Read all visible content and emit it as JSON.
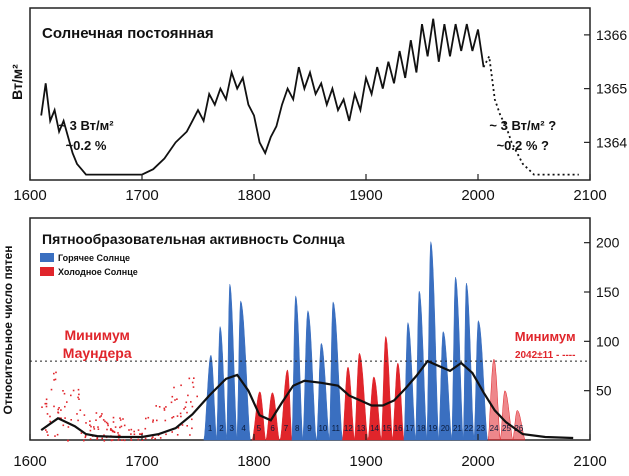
{
  "chart_data": [
    {
      "type": "line",
      "title": "Солнечная постоянная",
      "ylabel": "Вт/м²",
      "x_ticks": [
        "1600",
        "1700",
        "1800",
        "1900",
        "2000",
        "2100"
      ],
      "y_ticks": [
        "1366",
        "1365",
        "1364"
      ],
      "xlim": [
        1600,
        2100
      ],
      "ylim": [
        1363.3,
        1366.5
      ],
      "annotations": [
        {
          "text": "~ 3 Вт/м²",
          "x": 1650
        },
        {
          "text": "~0.2 %",
          "x": 1650
        },
        {
          "text": "~ 3 Вт/м² ?",
          "x": 2040
        },
        {
          "text": "~0.2 % ?",
          "x": 2040
        }
      ],
      "series": [
        {
          "line_style": "solid",
          "x": [
            1610,
            1614,
            1618,
            1622,
            1626,
            1630,
            1634,
            1638,
            1642,
            1646,
            1650,
            1660,
            1670,
            1680,
            1690,
            1700,
            1710,
            1720,
            1730,
            1740,
            1745,
            1750,
            1755,
            1760,
            1765,
            1770,
            1775,
            1780,
            1785,
            1790,
            1795,
            1800,
            1805,
            1810,
            1815,
            1820,
            1825,
            1830,
            1835,
            1840,
            1845,
            1850,
            1855,
            1860,
            1865,
            1870,
            1875,
            1880,
            1885,
            1890,
            1895,
            1900,
            1905,
            1910,
            1915,
            1920,
            1925,
            1930,
            1935,
            1940,
            1945,
            1950,
            1955,
            1960,
            1965,
            1970,
            1975,
            1980,
            1985,
            1990,
            1995,
            2000,
            2005
          ],
          "y": [
            1364.5,
            1365.1,
            1364.4,
            1364.6,
            1364.2,
            1364.4,
            1364.1,
            1363.8,
            1363.6,
            1363.5,
            1363.4,
            1363.4,
            1363.4,
            1363.4,
            1363.4,
            1363.4,
            1363.5,
            1363.7,
            1364.0,
            1364.2,
            1364.4,
            1364.6,
            1364.4,
            1364.9,
            1364.7,
            1365.0,
            1364.8,
            1365.3,
            1365.0,
            1365.2,
            1364.7,
            1364.5,
            1364.0,
            1363.8,
            1364.1,
            1364.3,
            1364.7,
            1365.0,
            1364.8,
            1365.4,
            1365.0,
            1365.3,
            1364.9,
            1365.1,
            1364.7,
            1365.0,
            1364.6,
            1364.8,
            1364.4,
            1364.9,
            1364.6,
            1365.2,
            1364.9,
            1365.4,
            1365.0,
            1365.5,
            1365.1,
            1365.7,
            1365.2,
            1365.9,
            1365.3,
            1366.2,
            1365.6,
            1366.3,
            1365.5,
            1366.2,
            1365.6,
            1366.2,
            1365.7,
            1366.2,
            1365.7,
            1366.1,
            1365.4
          ]
        },
        {
          "line_style": "dotted",
          "x": [
            2005,
            2010,
            2015,
            2020,
            2025,
            2030,
            2035,
            2040,
            2045,
            2050,
            2060,
            2080,
            2090
          ],
          "y": [
            1365.4,
            1365.6,
            1364.8,
            1364.5,
            1364.3,
            1364.0,
            1363.8,
            1363.6,
            1363.5,
            1363.4,
            1363.4,
            1363.4,
            1363.4
          ]
        }
      ]
    },
    {
      "type": "bar",
      "title": "Пятнообразовательная активность Солнца",
      "ylabel": "Относительное число пятен",
      "x_ticks": [
        "1600",
        "1700",
        "1800",
        "1900",
        "2000",
        "2100"
      ],
      "y_ticks": [
        "200",
        "150",
        "100",
        "50"
      ],
      "xlim": [
        1600,
        2100
      ],
      "ylim": [
        0,
        225
      ],
      "grid": false,
      "legend": {
        "position": "top-left",
        "entries": [
          {
            "label": "Горячее Солнце",
            "color": "#3a6fc0"
          },
          {
            "label": "Холодное Солнце",
            "color": "#e0252b"
          }
        ]
      },
      "reference_line": 80,
      "annotations": [
        {
          "text": "Минимум",
          "x": 1660
        },
        {
          "text": "Маундера",
          "x": 1660
        },
        {
          "text": "Минимум",
          "x": 2060
        },
        {
          "text": "2042±11 - ----",
          "x": 2060
        }
      ],
      "cycles": [
        {
          "label": "1",
          "start": 1755.2,
          "max": 1761.5,
          "value": 86,
          "state": "hot"
        },
        {
          "label": "2",
          "start": 1766.5,
          "max": 1769.7,
          "value": 115,
          "state": "hot"
        },
        {
          "label": "3",
          "start": 1775.5,
          "max": 1778.4,
          "value": 158,
          "state": "hot"
        },
        {
          "label": "4",
          "start": 1784.7,
          "max": 1788.1,
          "value": 141,
          "state": "hot"
        },
        {
          "label": "5",
          "start": 1798.3,
          "max": 1805.2,
          "value": 49,
          "state": "cold"
        },
        {
          "label": "6",
          "start": 1810.6,
          "max": 1816.4,
          "value": 48,
          "state": "cold"
        },
        {
          "label": "7",
          "start": 1823.3,
          "max": 1829.9,
          "value": 71,
          "state": "cold"
        },
        {
          "label": "8",
          "start": 1833.8,
          "max": 1837.2,
          "value": 146,
          "state": "hot"
        },
        {
          "label": "9",
          "start": 1843.5,
          "max": 1848.1,
          "value": 131,
          "state": "hot"
        },
        {
          "label": "10",
          "start": 1855.9,
          "max": 1860.1,
          "value": 98,
          "state": "hot"
        },
        {
          "label": "11",
          "start": 1867.2,
          "max": 1870.6,
          "value": 140,
          "state": "hot"
        },
        {
          "label": "12",
          "start": 1878.9,
          "max": 1883.9,
          "value": 74,
          "state": "cold"
        },
        {
          "label": "13",
          "start": 1889.6,
          "max": 1894.1,
          "value": 88,
          "state": "cold"
        },
        {
          "label": "14",
          "start": 1901.7,
          "max": 1907.0,
          "value": 64,
          "state": "cold"
        },
        {
          "label": "15",
          "start": 1913.6,
          "max": 1917.6,
          "value": 105,
          "state": "cold"
        },
        {
          "label": "16",
          "start": 1923.6,
          "max": 1928.4,
          "value": 78,
          "state": "cold"
        },
        {
          "label": "17",
          "start": 1933.8,
          "max": 1937.4,
          "value": 119,
          "state": "hot"
        },
        {
          "label": "18",
          "start": 1944.2,
          "max": 1947.5,
          "value": 151,
          "state": "hot"
        },
        {
          "label": "19",
          "start": 1954.3,
          "max": 1957.9,
          "value": 201,
          "state": "hot"
        },
        {
          "label": "20",
          "start": 1964.9,
          "max": 1968.9,
          "value": 110,
          "state": "hot"
        },
        {
          "label": "21",
          "start": 1976.5,
          "max": 1979.9,
          "value": 165,
          "state": "hot"
        },
        {
          "label": "22",
          "start": 1986.8,
          "max": 1989.6,
          "value": 159,
          "state": "hot"
        },
        {
          "label": "23",
          "start": 1996.4,
          "max": 2000.3,
          "value": 121,
          "state": "hot"
        },
        {
          "label": "24",
          "start": 2008.9,
          "max": 2014.2,
          "value": 82,
          "state": "cold"
        },
        {
          "label": "25",
          "start": 2019.9,
          "max": 2024.0,
          "value": 50,
          "state": "cold"
        },
        {
          "label": "26",
          "start": 2031.0,
          "max": 2035.0,
          "value": 30,
          "state": "cold"
        }
      ],
      "trend": {
        "x": [
          1610,
          1625,
          1640,
          1650,
          1660,
          1680,
          1700,
          1715,
          1730,
          1745,
          1760,
          1775,
          1785,
          1795,
          1805,
          1815,
          1825,
          1835,
          1845,
          1860,
          1875,
          1885,
          1895,
          1905,
          1915,
          1925,
          1935,
          1945,
          1955,
          1965,
          1975,
          1985,
          1995,
          2005,
          2015,
          2025,
          2040,
          2060,
          2085
        ],
        "y": [
          10,
          22,
          14,
          6,
          4,
          3,
          3,
          6,
          12,
          26,
          45,
          62,
          66,
          50,
          25,
          20,
          38,
          55,
          60,
          58,
          55,
          45,
          40,
          35,
          35,
          40,
          52,
          65,
          80,
          75,
          70,
          78,
          68,
          48,
          30,
          18,
          6,
          3,
          2
        ]
      }
    }
  ]
}
